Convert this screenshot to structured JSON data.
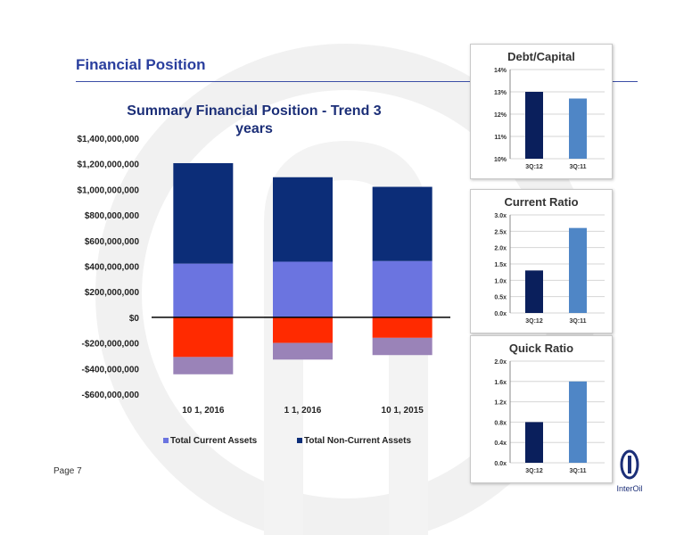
{
  "slide": {
    "title": "Financial Position",
    "page_label": "Page 7",
    "logo_text": "InterOil"
  },
  "colors": {
    "current_assets": "#6b74e0",
    "non_current_assets": "#0c2d78",
    "current_liabilities": "#ff2a00",
    "non_current_liabilities": "#9a83b8",
    "mini_dark": "#0a1f5c",
    "mini_light": "#4f86c6",
    "title_blue": "#2a3f9e"
  },
  "chart_data": [
    {
      "type": "bar",
      "stacked": true,
      "title_lines": [
        "Summary Financial Position - Trend 3",
        "years"
      ],
      "categories": [
        "10 1, 2016",
        "1 1, 2016",
        "10 1, 2015"
      ],
      "series": [
        {
          "name": "Total Current Assets",
          "values": [
            420000000,
            435000000,
            440000000
          ]
        },
        {
          "name": "Total Non-Current Assets",
          "values": [
            785000000,
            660000000,
            580000000
          ]
        },
        {
          "name": "",
          "values": [
            -310000000,
            -200000000,
            -160000000
          ]
        },
        {
          "name": "",
          "values": [
            -135000000,
            -130000000,
            -135000000
          ]
        }
      ],
      "ylim": [
        -600000000,
        1400000000
      ],
      "ytick_labels": [
        "$1,400,000,000",
        "$1,200,000,000",
        "$1,000,000,000",
        "$800,000,000",
        "$600,000,000",
        "$400,000,000",
        "$200,000,000",
        "$0",
        "-$200,000,000",
        "-$400,000,000",
        "-$600,000,000"
      ],
      "ytick_values": [
        1400000000,
        1200000000,
        1000000000,
        800000000,
        600000000,
        400000000,
        200000000,
        0,
        -200000000,
        -400000000,
        -600000000
      ],
      "legend_position": "bottom",
      "grid": false
    },
    {
      "type": "bar",
      "title": "Debt/Capital",
      "categories": [
        "3Q:12",
        "3Q:11"
      ],
      "values": [
        13.0,
        12.7
      ],
      "ylim": [
        10,
        14
      ],
      "ytick_labels": [
        "14%",
        "13%",
        "12%",
        "11%",
        "10%"
      ],
      "ytick_values": [
        14,
        13,
        12,
        11,
        10
      ]
    },
    {
      "type": "bar",
      "title": "Current Ratio",
      "categories": [
        "3Q:12",
        "3Q:11"
      ],
      "values": [
        1.3,
        2.6
      ],
      "ylim": [
        0,
        3
      ],
      "ytick_labels": [
        "3.0x",
        "2.5x",
        "2.0x",
        "1.5x",
        "1.0x",
        "0.5x",
        "0.0x"
      ],
      "ytick_values": [
        3,
        2.5,
        2,
        1.5,
        1,
        0.5,
        0
      ]
    },
    {
      "type": "bar",
      "title": "Quick Ratio",
      "categories": [
        "3Q:12",
        "3Q:11"
      ],
      "values": [
        0.8,
        1.6
      ],
      "ylim": [
        0,
        2
      ],
      "ytick_labels": [
        "2.0x",
        "1.6x",
        "1.2x",
        "0.8x",
        "0.4x",
        "0.0x"
      ],
      "ytick_values": [
        2,
        1.6,
        1.2,
        0.8,
        0.4,
        0
      ]
    }
  ]
}
